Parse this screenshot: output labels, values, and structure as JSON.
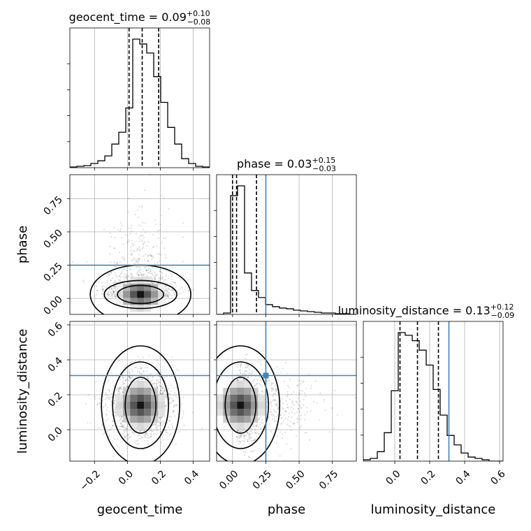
{
  "chart_data": {
    "type": "corner",
    "parameters": [
      "geocent_time",
      "phase",
      "luminosity_distance"
    ],
    "truths": {
      "phase": 0.25,
      "luminosity_distance": 0.31
    },
    "titles": {
      "geocent_time": {
        "name": "geocent_time",
        "median": "0.09",
        "plus": "+0.10",
        "minus": "−0.08"
      },
      "phase": {
        "name": "phase",
        "median": "0.03",
        "plus": "+0.15",
        "minus": "−0.03"
      },
      "luminosity_distance": {
        "name": "luminosity_distance",
        "median": "0.13",
        "plus": "+0.12",
        "minus": "−0.09"
      }
    },
    "ranges": {
      "geocent_time": [
        -0.35,
        0.5
      ],
      "phase": [
        -0.12,
        0.93
      ],
      "luminosity_distance": [
        -0.18,
        0.62
      ]
    },
    "ticks": {
      "geocent_time": [
        -0.2,
        0.0,
        0.2,
        0.4
      ],
      "phase": [
        0.0,
        0.25,
        0.5,
        0.75
      ],
      "luminosity_distance": [
        0.0,
        0.2,
        0.4,
        0.6
      ]
    },
    "tick_labels": {
      "geocent_time": [
        "−0.2",
        "0.0",
        "0.2",
        "0.4"
      ],
      "phase": [
        "0.00",
        "0.25",
        "0.50",
        "0.75"
      ],
      "luminosity_distance": [
        "0.0",
        "0.2",
        "0.4",
        "0.6"
      ]
    },
    "quantiles": {
      "geocent_time": [
        0.01,
        0.09,
        0.19
      ],
      "phase": [
        0.0,
        0.03,
        0.18
      ],
      "luminosity_distance": [
        0.03,
        0.13,
        0.25
      ]
    },
    "histograms": {
      "geocent_time": {
        "edges": [
          -0.35,
          -0.3075,
          -0.265,
          -0.2225,
          -0.18,
          -0.1375,
          -0.095,
          -0.0525,
          -0.01,
          0.0325,
          0.075,
          0.1175,
          0.16,
          0.2025,
          0.245,
          0.2875,
          0.33,
          0.3725,
          0.415,
          0.4575,
          0.5
        ],
        "counts": [
          1,
          2,
          3,
          6,
          10,
          17,
          34,
          51,
          86,
          185,
          178,
          165,
          131,
          94,
          58,
          34,
          13,
          6,
          2,
          1
        ]
      },
      "phase": {
        "edges": [
          -0.12,
          -0.0675,
          -0.015,
          0.0375,
          0.09,
          0.1425,
          0.195,
          0.2475,
          0.3,
          0.3525,
          0.405,
          0.4575,
          0.51,
          0.5625,
          0.615,
          0.6675,
          0.72,
          0.7725,
          0.825,
          0.8775,
          0.93
        ],
        "counts": [
          0,
          2,
          169,
          183,
          59,
          34,
          24,
          14,
          11,
          9,
          8,
          6,
          5,
          4,
          3,
          2,
          2,
          1,
          1,
          0
        ]
      },
      "luminosity_distance": {
        "edges": [
          -0.18,
          -0.14,
          -0.1,
          -0.06,
          -0.02,
          0.02,
          0.06,
          0.1,
          0.14,
          0.18,
          0.22,
          0.26,
          0.3,
          0.34,
          0.38,
          0.42,
          0.46,
          0.5,
          0.54,
          0.58,
          0.62
        ],
        "counts": [
          1,
          2,
          7,
          21,
          52,
          95,
          93,
          89,
          82,
          71,
          53,
          34,
          19,
          12,
          6,
          3,
          2,
          1,
          0,
          0
        ]
      }
    },
    "joint": {
      "phase|geocent_time": {
        "mx": 0.08,
        "my": 0.03,
        "sx": 0.1,
        "sy": 0.18
      },
      "luminosity_distance|geocent_time": {
        "mx": 0.08,
        "my": 0.14,
        "sx": 0.1,
        "sy": 0.1
      },
      "luminosity_distance|phase": {
        "mx": 0.06,
        "my": 0.14,
        "sx": 0.1,
        "sy": 0.1
      }
    }
  }
}
